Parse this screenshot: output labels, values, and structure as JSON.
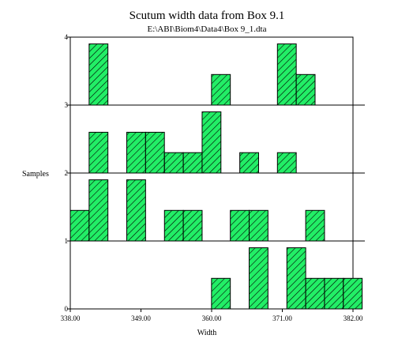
{
  "chart_data": {
    "type": "bar",
    "title": "Scutum width data from Box 9.1",
    "subtitle": "E:\\ABI\\Biom4\\Data4\\Box 9_1.dta",
    "xlabel": "Width",
    "ylabel": "Samples",
    "xlim": [
      338.0,
      382.0
    ],
    "ylim": [
      0,
      4
    ],
    "bin_width": 2.93,
    "x_ticks": [
      "338.00",
      "349.00",
      "360.00",
      "371.00",
      "382.00"
    ],
    "y_ticks": [
      "0",
      "1",
      "2",
      "3",
      "4"
    ],
    "colors": {
      "bar_fill": "#22ee66",
      "bar_stroke": "#000000",
      "hatch": "#000000"
    },
    "samples": [
      {
        "sample": 1,
        "bars": [
          {
            "x0": 359.98,
            "height": 0.45
          },
          {
            "x0": 365.84,
            "height": 0.9
          },
          {
            "x0": 371.71,
            "height": 0.9
          },
          {
            "x0": 374.64,
            "height": 0.45
          },
          {
            "x0": 377.57,
            "height": 0.45
          },
          {
            "x0": 380.5,
            "height": 0.45
          }
        ]
      },
      {
        "sample": 2,
        "bars": [
          {
            "x0": 338.0,
            "height": 0.45
          },
          {
            "x0": 340.93,
            "height": 0.9
          },
          {
            "x0": 346.79,
            "height": 0.9
          },
          {
            "x0": 352.66,
            "height": 0.45
          },
          {
            "x0": 355.59,
            "height": 0.45
          },
          {
            "x0": 362.91,
            "height": 0.45
          },
          {
            "x0": 365.84,
            "height": 0.45
          },
          {
            "x0": 374.64,
            "height": 0.45
          }
        ]
      },
      {
        "sample": 3,
        "bars": [
          {
            "x0": 340.93,
            "height": 0.6
          },
          {
            "x0": 346.79,
            "height": 0.6
          },
          {
            "x0": 349.72,
            "height": 0.6
          },
          {
            "x0": 352.66,
            "height": 0.3
          },
          {
            "x0": 355.59,
            "height": 0.3
          },
          {
            "x0": 358.52,
            "height": 0.9
          },
          {
            "x0": 364.38,
            "height": 0.3
          },
          {
            "x0": 370.24,
            "height": 0.3
          }
        ]
      },
      {
        "sample": 4,
        "bars": [
          {
            "x0": 340.93,
            "height": 0.9
          },
          {
            "x0": 359.98,
            "height": 0.45
          },
          {
            "x0": 370.24,
            "height": 0.9
          },
          {
            "x0": 373.17,
            "height": 0.45
          }
        ]
      }
    ]
  }
}
